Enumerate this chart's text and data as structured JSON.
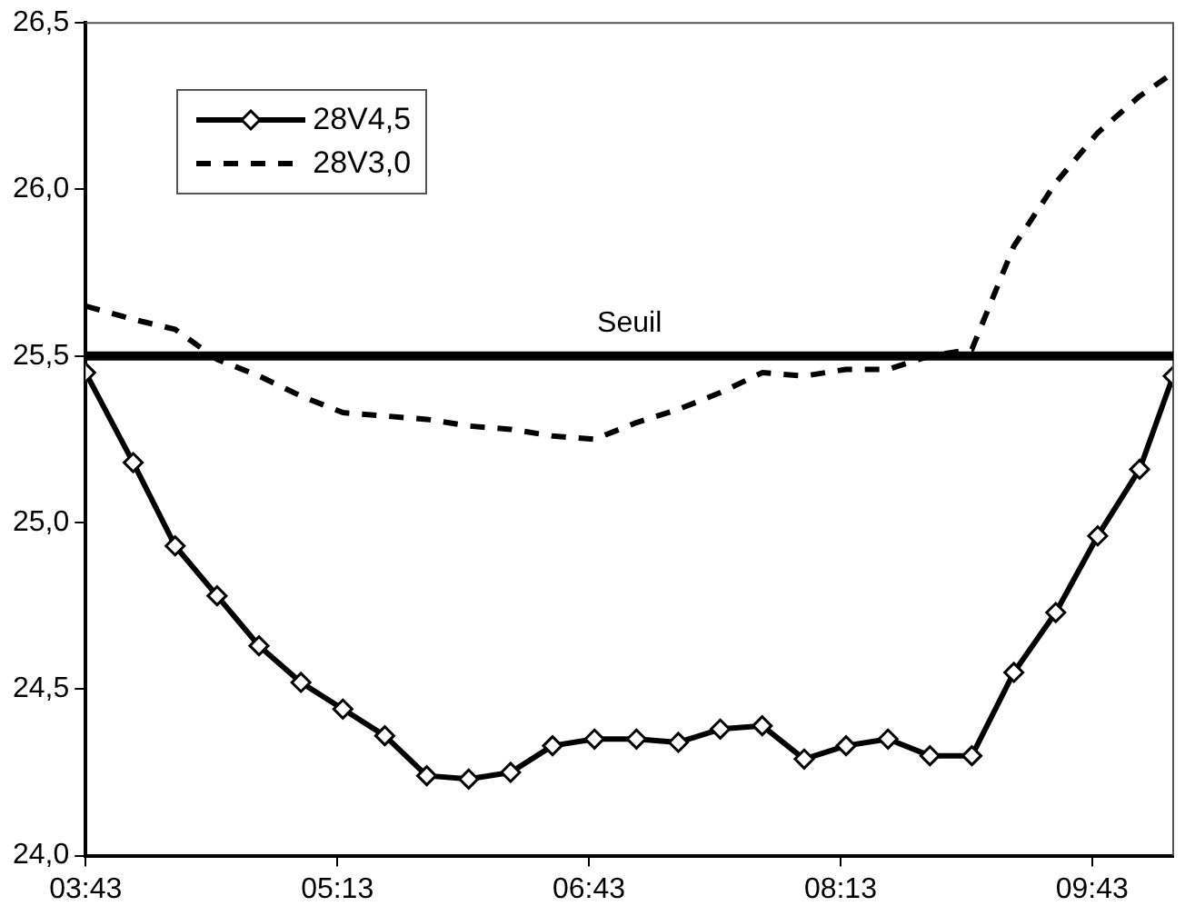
{
  "chart_data": {
    "type": "line",
    "x": [
      3.7167,
      4,
      4.25,
      4.5,
      4.75,
      5,
      5.25,
      5.5,
      5.75,
      6,
      6.25,
      6.5,
      6.75,
      7,
      7.25,
      7.5,
      7.75,
      8,
      8.25,
      8.5,
      8.75,
      9,
      9.25,
      9.5,
      9.75,
      10,
      10.2
    ],
    "series": [
      {
        "name": "28V4,5",
        "color": "#000000",
        "marker": "diamond",
        "line_style": "solid",
        "values": [
          25.45,
          25.18,
          24.93,
          24.78,
          24.63,
          24.52,
          24.44,
          24.36,
          24.24,
          24.23,
          24.25,
          24.33,
          24.35,
          24.35,
          24.34,
          24.38,
          24.39,
          24.29,
          24.33,
          24.35,
          24.3,
          24.3,
          24.55,
          24.73,
          24.96,
          25.16,
          25.44
        ]
      },
      {
        "name": "28V3,0",
        "color": "#000000",
        "marker": "none",
        "line_style": "dashed",
        "values": [
          25.65,
          25.61,
          25.58,
          25.49,
          25.44,
          25.38,
          25.33,
          25.32,
          25.31,
          25.29,
          25.28,
          25.26,
          25.25,
          25.3,
          25.34,
          25.39,
          25.45,
          25.44,
          25.46,
          25.46,
          25.5,
          25.52,
          25.83,
          26.02,
          26.17,
          26.28,
          26.35
        ]
      }
    ],
    "xlim": [
      3.7167,
      10.2
    ],
    "xticks": [
      {
        "value": 3.7167,
        "label": "03:43"
      },
      {
        "value": 5.2167,
        "label": "05:13"
      },
      {
        "value": 6.7167,
        "label": "06:43"
      },
      {
        "value": 8.2167,
        "label": "08:13"
      },
      {
        "value": 9.7167,
        "label": "09:43"
      }
    ],
    "ylim": [
      24,
      26.5
    ],
    "yticks": [
      {
        "value": 24,
        "label": "24,0"
      },
      {
        "value": 24.5,
        "label": "24,5"
      },
      {
        "value": 25,
        "label": "25,0"
      },
      {
        "value": 25.5,
        "label": "25,5"
      },
      {
        "value": 26,
        "label": "26,0"
      },
      {
        "value": 26.5,
        "label": "26,5"
      }
    ],
    "ref_lines": [
      {
        "axis": "y",
        "value": 25.5,
        "label": "Seuil",
        "color": "#000000",
        "line_style": "solid"
      }
    ],
    "grid": false,
    "legend": "top left"
  }
}
